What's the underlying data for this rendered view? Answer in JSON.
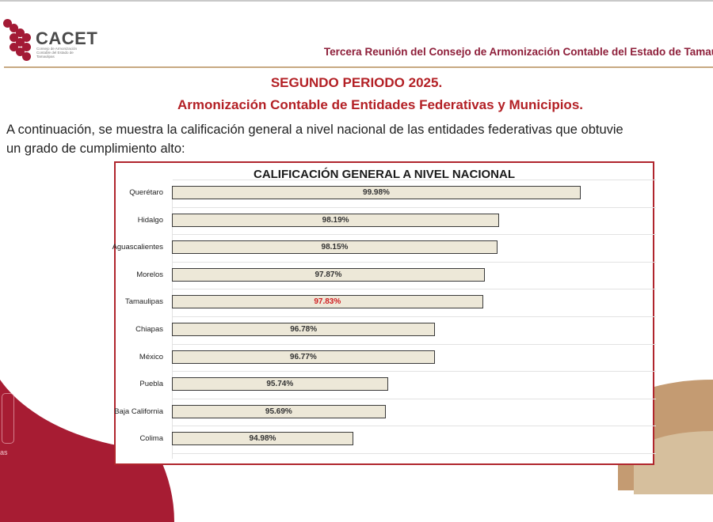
{
  "header": {
    "logo_text": "CACET",
    "logo_subtext": "Consejo de Armonización Contable del Estado de Tamaulipas",
    "meeting_title": "Tercera Reunión del Consejo de Armonización Contable del Estado de Tamau"
  },
  "main": {
    "period": "SEGUNDO PERIODO 2025.",
    "subtitle": "Armonización Contable de Entidades Federativas y Municipios.",
    "intro_line1": "A continuación, se muestra la calificación general a nivel nacional de las entidades federativas que obtuvie",
    "intro_line2": "un grado de cumplimiento alto:"
  },
  "footer": {
    "seal_text": "as"
  },
  "colors": {
    "accent_red": "#b32025",
    "frame_red": "#b0252d",
    "bar_fill": "#ede8d8",
    "highlight_value": "#d01f22",
    "logo_red": "#a31a35"
  },
  "chart_data": {
    "type": "bar",
    "orientation": "horizontal",
    "title": "CALIFICACIÓN GENERAL A NIVEL NACIONAL",
    "xlabel": "",
    "ylabel": "",
    "categories": [
      "Querétaro",
      "Hidalgo",
      "Aguascalientes",
      "Morelos",
      "Tamaulipas",
      "Chiapas",
      "México",
      "Puebla",
      "Baja California",
      "Colima"
    ],
    "values": [
      99.98,
      98.19,
      98.15,
      97.87,
      97.83,
      96.78,
      96.77,
      95.74,
      95.69,
      94.98
    ],
    "labels": [
      "99.98%",
      "98.19%",
      "98.15%",
      "97.87%",
      "97.83%",
      "96.78%",
      "96.77%",
      "95.74%",
      "95.69%",
      "94.98%"
    ],
    "highlight": "Tamaulipas",
    "grid": true,
    "legend": "none"
  }
}
